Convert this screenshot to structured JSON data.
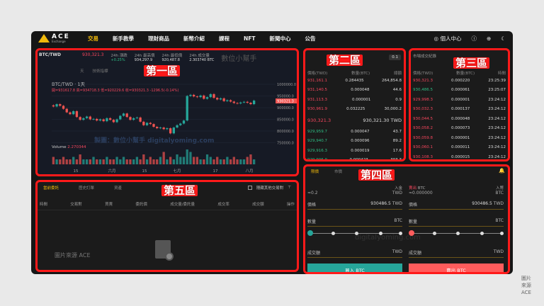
{
  "nav": {
    "brand": "ACE",
    "brand_sub": "Exchange",
    "items": [
      "交易",
      "新手教學",
      "理財商品",
      "新幣介紹",
      "課程",
      "NFT",
      "新聞中心",
      "公告"
    ],
    "active": 0,
    "user": "個人中心",
    "icons": [
      "user-icon",
      "help-icon",
      "globe-icon",
      "moon-icon"
    ]
  },
  "labels": {
    "zone1": "第一區",
    "zone2": "第二區",
    "zone3": "第三區",
    "zone4": "第四區",
    "zone5": "第五區"
  },
  "ticker": {
    "pair": "BTC/TWD",
    "last": "930,321.3",
    "stats": [
      {
        "label": "24h 漲跌",
        "value": "+0.25%"
      },
      {
        "label": "24h 最高價",
        "value": "934,297.9"
      },
      {
        "label": "24h 最低價",
        "value": "920,487.8"
      },
      {
        "label": "24h 成交量",
        "value": "2.303740 BTC"
      }
    ],
    "watermark": "數位小幫手"
  },
  "chart": {
    "toolbar": [
      "天",
      "技術指標"
    ],
    "title": "BTC/TWD · 1天",
    "ohlc": "開=931617.8 高=934718.3 低=920229.6 收=930321.3 -1296.5(-0.14%)",
    "volume_label": "Volume",
    "volume_value": "2.270344",
    "watermark": "製圖：數位小幫手 digitalyoming.com",
    "current_price": "930321.3"
  },
  "chart_data": {
    "type": "candlestick",
    "yticks": [
      "1000000.0",
      "950000.0",
      "900000.0",
      "850000.0",
      "800000.0",
      "750000.0"
    ],
    "ylim": [
      750000,
      1000000
    ],
    "xticks": [
      "15",
      "六月",
      "15",
      "七月",
      "17",
      "八月"
    ],
    "closes": [
      905000,
      915000,
      908000,
      895000,
      880000,
      872000,
      885000,
      860000,
      848000,
      855000,
      862000,
      850000,
      852000,
      845000,
      850000,
      842000,
      855000,
      848000,
      838000,
      850000,
      865000,
      875000,
      860000,
      848000,
      855000,
      858000,
      840000,
      825000,
      835000,
      830000,
      818000,
      812000,
      815000,
      808000,
      812000,
      790000,
      815000,
      825000,
      832000,
      845000,
      950000,
      955000,
      948000,
      945000,
      952000,
      938000,
      945000,
      958000,
      942000,
      935000,
      940000,
      928000,
      932000,
      926000,
      920000,
      918000,
      922000,
      925000,
      921000,
      915000,
      930321
    ],
    "volumes": [
      3,
      2,
      2,
      3,
      2,
      2,
      3,
      2,
      4,
      2,
      2,
      2,
      3,
      2,
      2,
      2,
      3,
      2,
      2,
      3,
      2,
      3,
      2,
      2,
      2,
      3,
      2,
      4,
      2,
      3,
      2,
      2,
      3,
      5,
      2,
      3,
      2,
      4,
      3,
      3,
      6,
      5,
      3,
      3,
      2,
      2,
      4,
      3,
      2,
      3,
      2,
      2,
      3,
      2,
      3,
      2,
      2,
      2,
      3,
      4,
      2
    ]
  },
  "orderbook": {
    "headers": [
      "價格(TWD)",
      "數量(BTC)",
      "總額"
    ],
    "step": "0.1",
    "asks": [
      [
        "931,161.1",
        "0.284435",
        "264,854.8"
      ],
      [
        "931,140.5",
        "0.000048",
        "44.6"
      ],
      [
        "931,113.3",
        "0.000001",
        "0.9"
      ],
      [
        "930,961.9",
        "0.032225",
        "30,000.2"
      ]
    ],
    "mid": "930,321.3",
    "mid_twd": "930,321.30 TWD",
    "bids": [
      [
        "929,959.7",
        "0.000047",
        "43.7"
      ],
      [
        "929,940.7",
        "0.000096",
        "89.2"
      ],
      [
        "929,916.3",
        "0.000019",
        "17.6"
      ],
      [
        "929,906.9",
        "0.000423",
        "393.3"
      ]
    ]
  },
  "trades": {
    "title": "市場成交紀錄",
    "headers": [
      "價格(TWD)",
      "數量(BTC)",
      "時間"
    ],
    "rows": [
      [
        "930,321.3",
        "0.000220",
        "23:25:39",
        "red"
      ],
      [
        "930,486.5",
        "0.000061",
        "23:25:07",
        "green"
      ],
      [
        "929,998.3",
        "0.000001",
        "23:24:12",
        "red"
      ],
      [
        "930,032.3",
        "0.000137",
        "23:24:12",
        "red"
      ],
      [
        "930,044.5",
        "0.000048",
        "23:24:12",
        "red"
      ],
      [
        "930,058.2",
        "0.000073",
        "23:24:12",
        "red"
      ],
      [
        "930,059.8",
        "0.000001",
        "23:24:12",
        "red"
      ],
      [
        "930,060.1",
        "0.000011",
        "23:24:12",
        "red"
      ],
      [
        "930,108.3",
        "0.000015",
        "23:24:12",
        "red"
      ]
    ]
  },
  "form": {
    "tabs": [
      "限價",
      "市價"
    ],
    "buy": {
      "title": "買入 BTC",
      "deposit": "入金",
      "available": "≈0.2",
      "available_unit": "TWD",
      "price_label": "價格",
      "price": "930486.5",
      "price_unit": "TWD",
      "qty_label": "數量",
      "qty_unit": "BTC",
      "total_label": "成交額",
      "total_unit": "TWD",
      "button": "買入 BTC"
    },
    "sell": {
      "title_prefix": "賣出",
      "title_unit": "BTC",
      "deposit": "入幣",
      "available": "≈0.000000",
      "available_unit": "BTC",
      "price_label": "價格",
      "price": "930486.5",
      "price_unit": "TWD",
      "qty_label": "數量",
      "qty_unit": "BTC",
      "total_label": "成交額",
      "total_unit": "TWD",
      "button": "賣出 BTC"
    },
    "watermark": "digitalyoming.com",
    "colors": {
      "buy": "#26a69a",
      "sell": "#ff5c5c"
    }
  },
  "orders": {
    "tabs": [
      "當前委託",
      "歷史訂單",
      "資產"
    ],
    "hide_others": "隱藏其他交易對",
    "headers": [
      "時間",
      "交易對",
      "買賣",
      "委託價",
      "成交量/委託量",
      "成交率",
      "成交額",
      "操作"
    ],
    "watermark": "圖片來源 ACE"
  },
  "credit": "圖片來源ACE"
}
